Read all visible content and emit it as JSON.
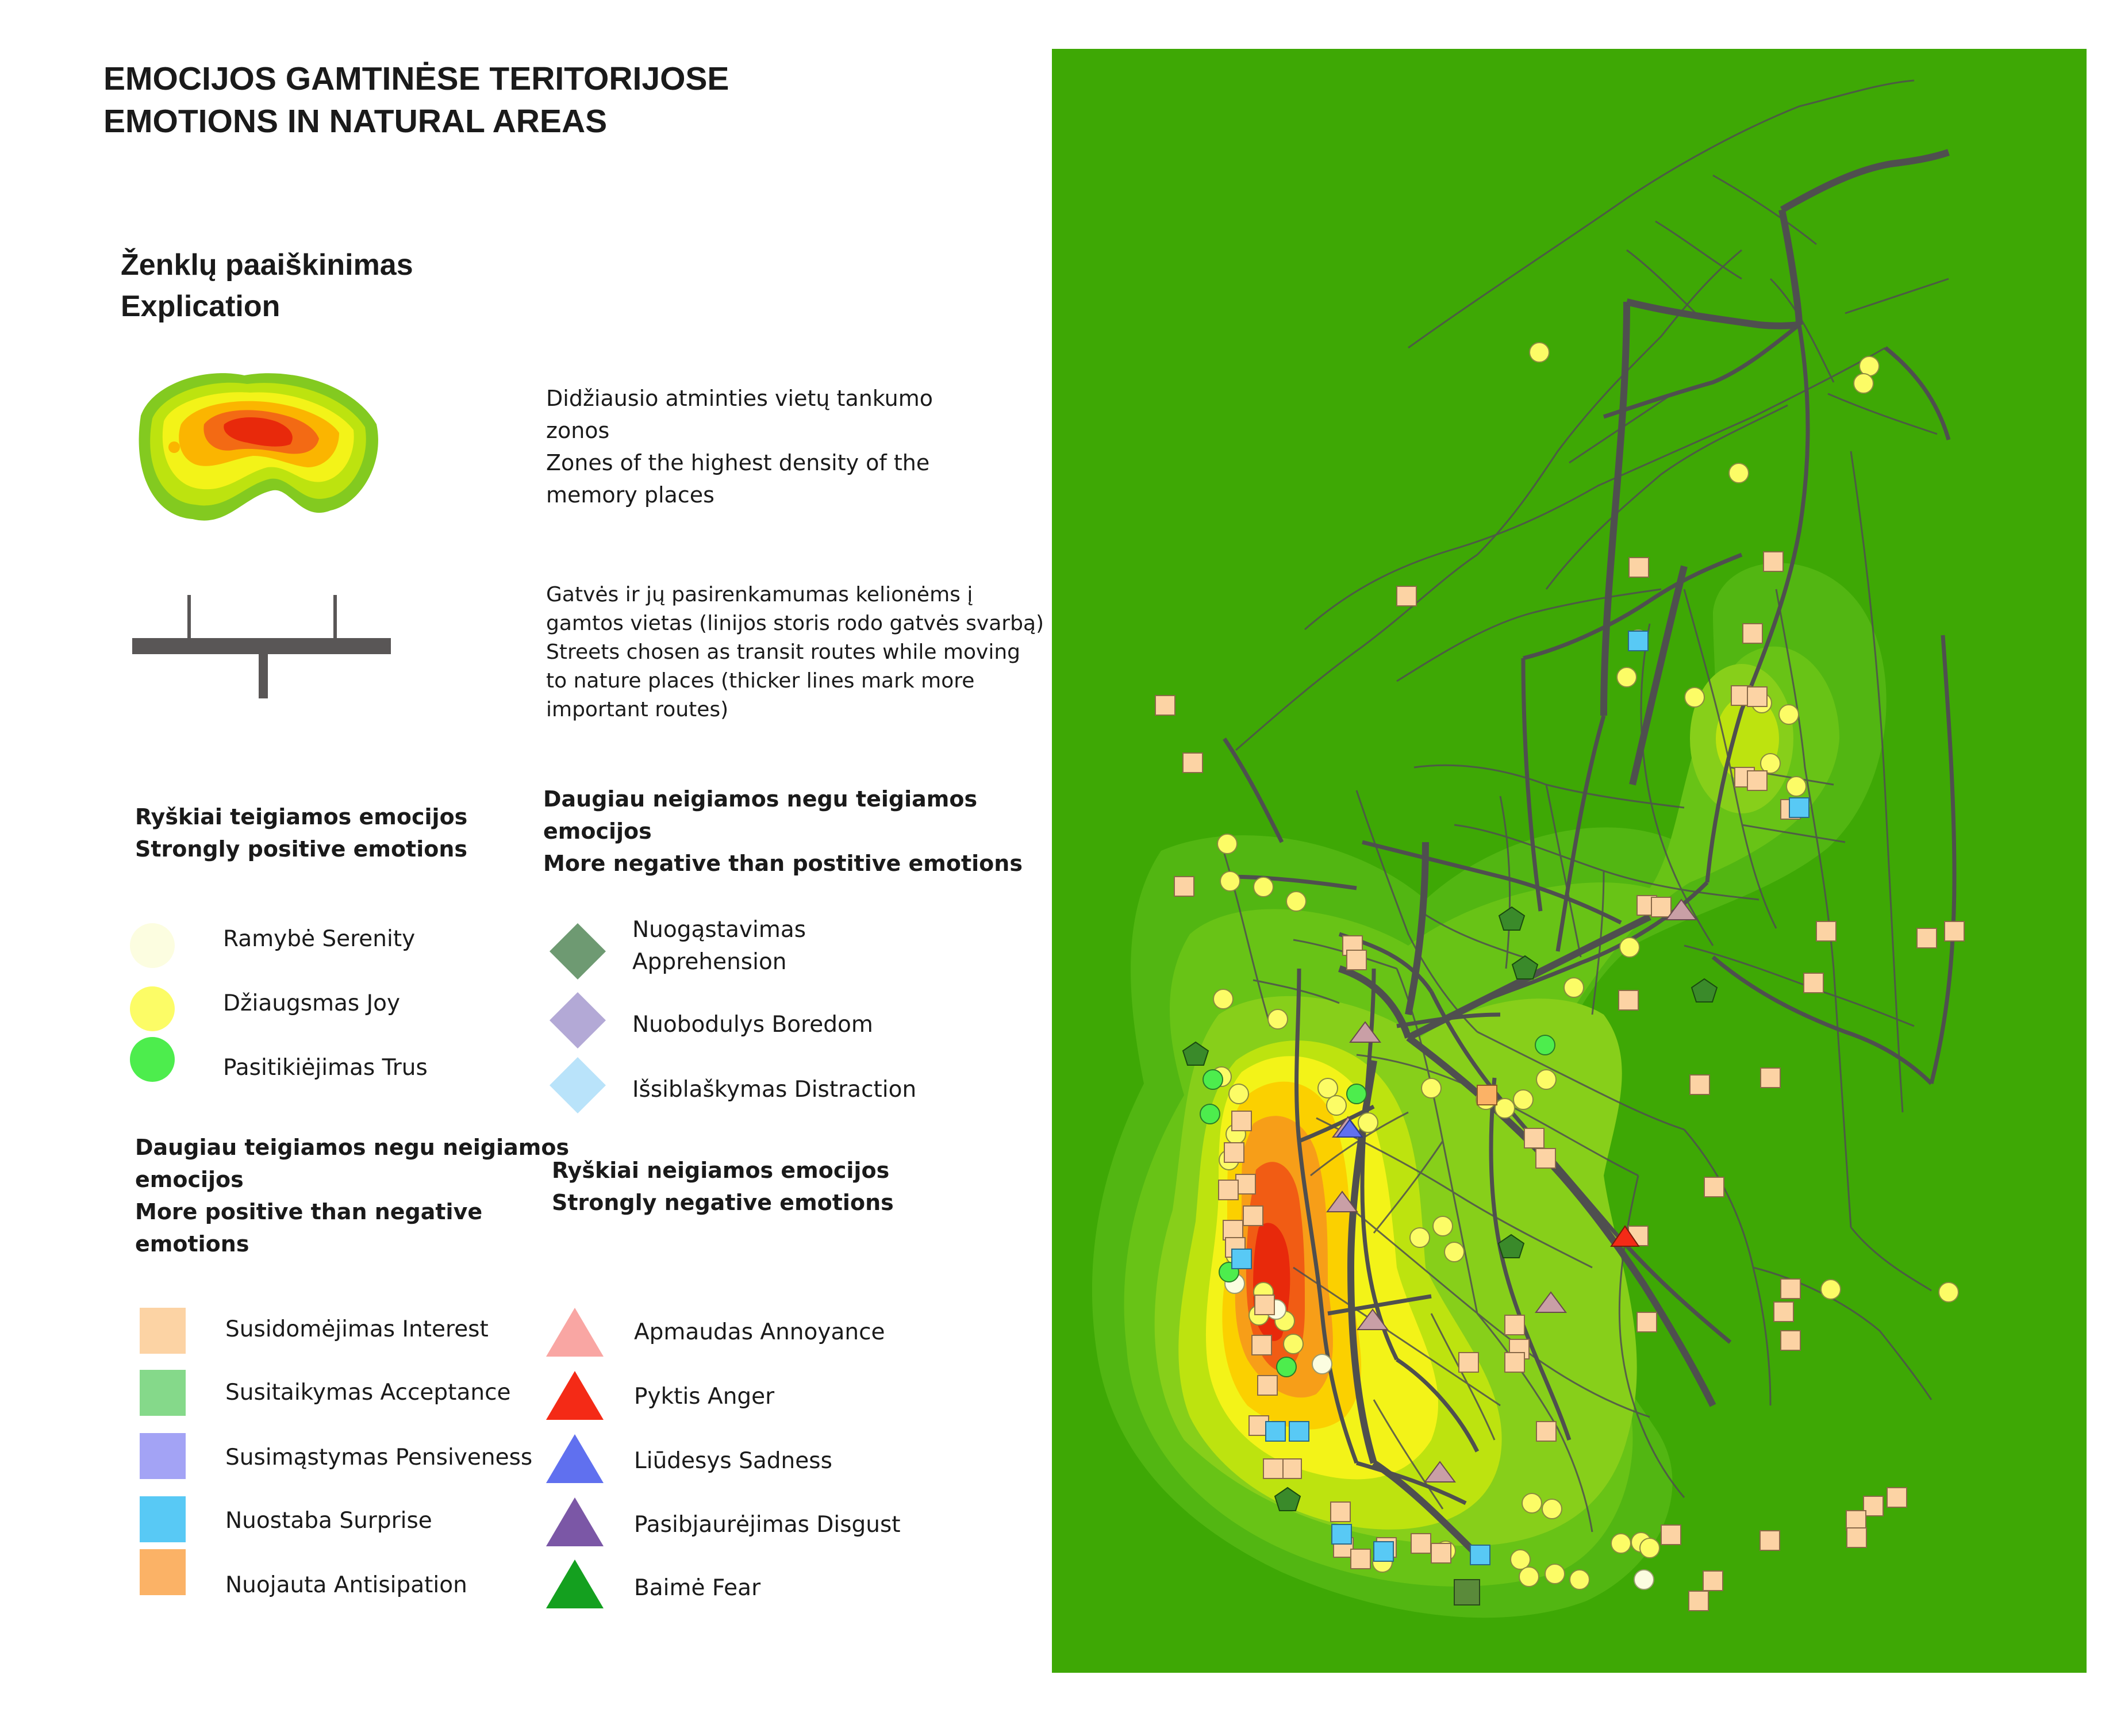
{
  "title": {
    "line1": "EMOCIJOS GAMTINĖSE TERITORIJOSE",
    "line2": "EMOTIONS IN NATURAL AREAS"
  },
  "explication": {
    "line1": "Ženklų paaiškinimas",
    "line2": "Explication"
  },
  "density_legend": {
    "lt": "Didžiausio atminties vietų tankumo zonos",
    "en": "Zones of the highest density of the memory places",
    "lines": [
      "Didžiausio atminties vietų tankumo",
      "zonos",
      "Zones of the highest density of the",
      "memory places"
    ]
  },
  "streets_legend": {
    "lines": [
      "Gatvės ir jų pasirenkamumas kelionėms į",
      "gamtos vietas (linijos storis rodo gatvės svarbą)",
      "Streets chosen as transit routes while moving",
      "to nature places (thicker lines mark more",
      "important routes)"
    ]
  },
  "groups": {
    "strongly_positive": {
      "lt": "Ryškiai teigiamos emocijos",
      "en": "Strongly positive emotions"
    },
    "more_negative": {
      "lines": [
        "Daugiau neigiamos negu teigiamos",
        "emocijos",
        "More negative than postitive emotions"
      ]
    },
    "more_positive": {
      "lines": [
        "Daugiau teigiamos negu neigiamos",
        "emocijos",
        "More positive than negative",
        "emotions"
      ]
    },
    "strongly_negative": {
      "lt": "Ryškiai neigiamos emocijos",
      "en": "Strongly negative emotions"
    }
  },
  "items": {
    "serenity": {
      "label": "Ramybė Serenity",
      "color": "#fcfde0"
    },
    "joy": {
      "label": "Džiaugsmas Joy",
      "color": "#fcfc66"
    },
    "trust": {
      "label": "Pasitikiėjimas Trus",
      "color": "#4ded4d"
    },
    "apprehension": {
      "lines": [
        "Nuogąstavimas",
        "Apprehension"
      ],
      "color": "#6e9a72"
    },
    "boredom": {
      "label": "Nuobodulys Boredom",
      "color": "#b3a9d6"
    },
    "distraction": {
      "label": "Išsiblaškymas Distraction",
      "color": "#b9e3fa"
    },
    "interest": {
      "label": "Susidomėjimas Interest",
      "color": "#fcd3a4"
    },
    "acceptance": {
      "label": "Susitaikymas Acceptance",
      "color": "#85d98a"
    },
    "pensiveness": {
      "label": "Susimąstymas Pensiveness",
      "color": "#a3a3f5"
    },
    "surprise": {
      "label": "Nuostaba Surprise",
      "color": "#58c9f5"
    },
    "anticipation": {
      "label": "Nuojauta Antisipation",
      "color": "#fbb266"
    },
    "annoyance": {
      "label": "Apmaudas Annoyance",
      "color": "#f9a6a3"
    },
    "anger": {
      "label": "Pyktis Anger",
      "color": "#f42a16"
    },
    "sadness": {
      "label": "Liūdesys Sadness",
      "color": "#6070ef"
    },
    "disgust": {
      "label": "Pasibjaurėjimas Disgust",
      "color": "#7b57a6"
    },
    "fear": {
      "label": "Baimė Fear",
      "color": "#14a01f"
    }
  },
  "map_colors": {
    "background": "#3ea805",
    "streets": "#4f4f4f",
    "density": [
      "#52b612",
      "#68c316",
      "#87cf1a",
      "#bde30f",
      "#f3f318",
      "#fbd000",
      "#f79e18",
      "#f15c14",
      "#e8290b"
    ]
  }
}
